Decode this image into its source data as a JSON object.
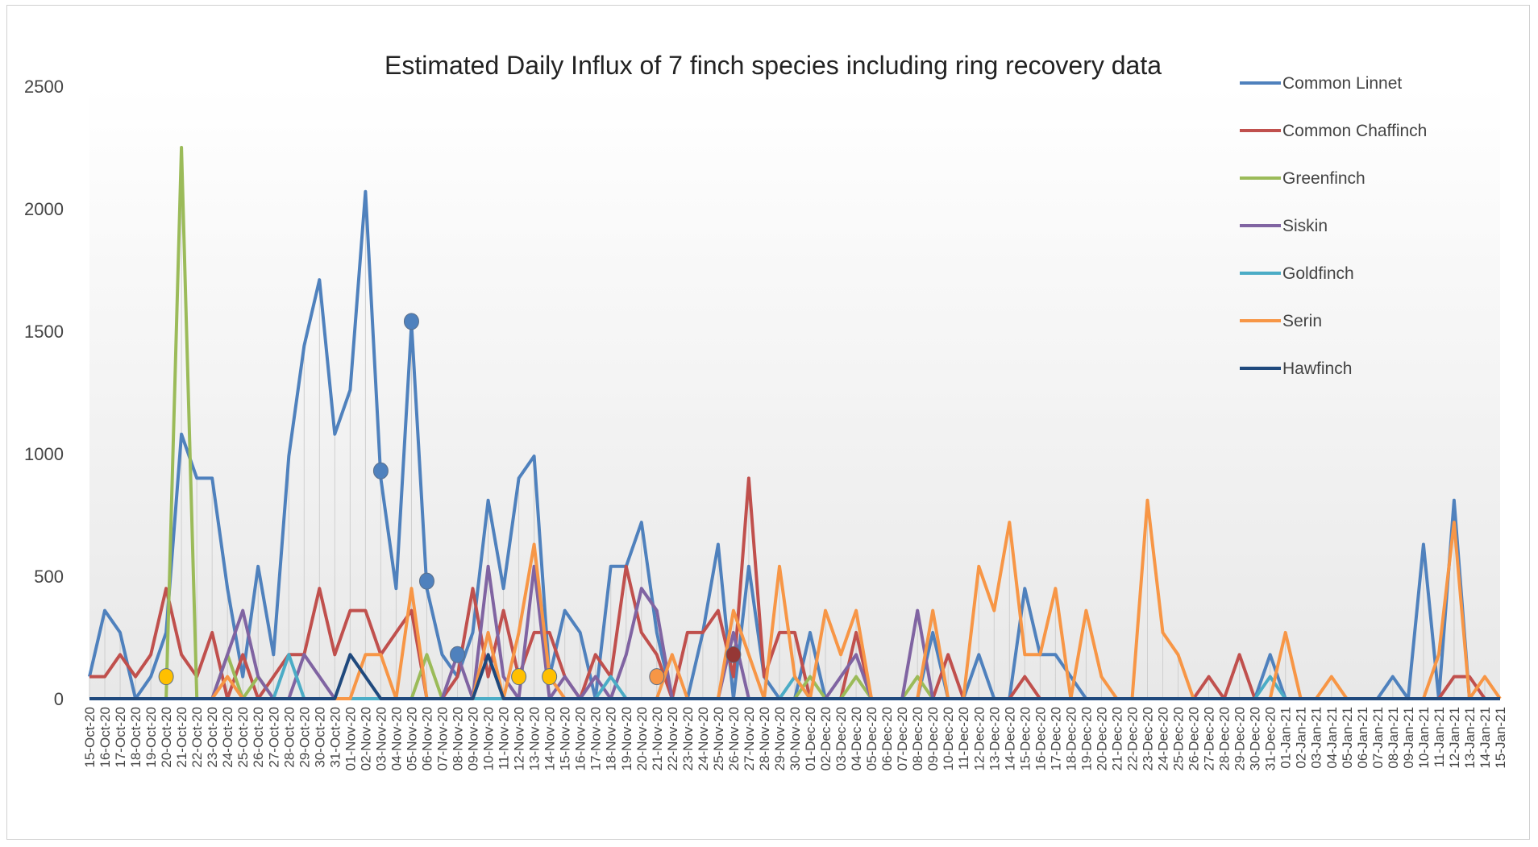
{
  "chart_data": {
    "type": "line",
    "title": "Estimated Daily Influx of 7 finch species including ring recovery data",
    "xlabel": "",
    "ylabel": "",
    "ylim": [
      0,
      2500
    ],
    "yticks": [
      0,
      500,
      1000,
      1500,
      2000,
      2500
    ],
    "grid": "vertical drop lines",
    "legend_position": "right",
    "categories": [
      "15-Oct-20",
      "16-Oct-20",
      "17-Oct-20",
      "18-Oct-20",
      "19-Oct-20",
      "20-Oct-20",
      "21-Oct-20",
      "22-Oct-20",
      "23-Oct-20",
      "24-Oct-20",
      "25-Oct-20",
      "26-Oct-20",
      "27-Oct-20",
      "28-Oct-20",
      "29-Oct-20",
      "30-Oct-20",
      "31-Oct-20",
      "01-Nov-20",
      "02-Nov-20",
      "03-Nov-20",
      "04-Nov-20",
      "05-Nov-20",
      "06-Nov-20",
      "07-Nov-20",
      "08-Nov-20",
      "09-Nov-20",
      "10-Nov-20",
      "11-Nov-20",
      "12-Nov-20",
      "13-Nov-20",
      "14-Nov-20",
      "15-Nov-20",
      "16-Nov-20",
      "17-Nov-20",
      "18-Nov-20",
      "19-Nov-20",
      "20-Nov-20",
      "21-Nov-20",
      "22-Nov-20",
      "23-Nov-20",
      "24-Nov-20",
      "25-Nov-20",
      "26-Nov-20",
      "27-Nov-20",
      "28-Nov-20",
      "29-Nov-20",
      "30-Nov-20",
      "01-Dec-20",
      "02-Dec-20",
      "03-Dec-20",
      "04-Dec-20",
      "05-Dec-20",
      "06-Dec-20",
      "07-Dec-20",
      "08-Dec-20",
      "09-Dec-20",
      "10-Dec-20",
      "11-Dec-20",
      "12-Dec-20",
      "13-Dec-20",
      "14-Dec-20",
      "15-Dec-20",
      "16-Dec-20",
      "17-Dec-20",
      "18-Dec-20",
      "19-Dec-20",
      "20-Dec-20",
      "21-Dec-20",
      "22-Dec-20",
      "23-Dec-20",
      "24-Dec-20",
      "25-Dec-20",
      "26-Dec-20",
      "27-Dec-20",
      "28-Dec-20",
      "29-Dec-20",
      "30-Dec-20",
      "31-Dec-20",
      "01-Jan-21",
      "02-Jan-21",
      "03-Jan-21",
      "04-Jan-21",
      "05-Jan-21",
      "06-Jan-21",
      "07-Jan-21",
      "08-Jan-21",
      "09-Jan-21",
      "10-Jan-21",
      "11-Jan-21",
      "12-Jan-21",
      "13-Jan-21",
      "14-Jan-21",
      "15-Jan-21"
    ],
    "series": [
      {
        "name": "Common Linnet",
        "color": "#4f81bd",
        "values": [
          90,
          360,
          270,
          0,
          90,
          270,
          1080,
          900,
          900,
          450,
          90,
          540,
          180,
          990,
          1440,
          1710,
          1080,
          1260,
          2070,
          900,
          450,
          1530,
          450,
          180,
          90,
          270,
          810,
          450,
          900,
          990,
          90,
          360,
          270,
          0,
          540,
          540,
          720,
          270,
          0,
          0,
          270,
          630,
          0,
          540,
          90,
          0,
          0,
          270,
          0,
          0,
          0,
          0,
          0,
          0,
          0,
          270,
          0,
          0,
          180,
          0,
          0,
          450,
          180,
          180,
          90,
          0,
          0,
          0,
          0,
          0,
          0,
          0,
          0,
          0,
          0,
          0,
          0,
          180,
          0,
          0,
          0,
          0,
          0,
          0,
          0,
          90,
          0,
          630,
          0,
          810,
          0,
          0,
          0
        ]
      },
      {
        "name": "Common Chaffinch",
        "color": "#c0504d",
        "values": [
          90,
          90,
          180,
          90,
          180,
          450,
          180,
          90,
          270,
          0,
          180,
          0,
          90,
          180,
          180,
          450,
          180,
          360,
          360,
          180,
          270,
          360,
          0,
          0,
          90,
          450,
          90,
          360,
          90,
          270,
          270,
          90,
          0,
          180,
          90,
          540,
          270,
          180,
          0,
          270,
          270,
          360,
          90,
          900,
          90,
          270,
          270,
          0,
          0,
          0,
          270,
          0,
          0,
          0,
          0,
          0,
          180,
          0,
          0,
          0,
          0,
          90,
          0,
          0,
          0,
          0,
          0,
          0,
          0,
          0,
          0,
          0,
          0,
          90,
          0,
          180,
          0,
          0,
          0,
          0,
          0,
          0,
          0,
          0,
          0,
          0,
          0,
          0,
          0,
          90,
          90,
          0,
          0
        ]
      },
      {
        "name": "Greenfinch",
        "color": "#9bbb59",
        "values": [
          0,
          0,
          0,
          0,
          0,
          0,
          2250,
          0,
          0,
          180,
          0,
          90,
          0,
          0,
          0,
          0,
          0,
          0,
          0,
          0,
          0,
          0,
          180,
          0,
          0,
          0,
          0,
          0,
          0,
          0,
          0,
          0,
          0,
          0,
          0,
          0,
          0,
          0,
          0,
          0,
          0,
          0,
          0,
          0,
          0,
          0,
          0,
          90,
          0,
          0,
          90,
          0,
          0,
          0,
          90,
          0,
          0,
          0,
          0,
          0,
          0,
          0,
          0,
          0,
          0,
          0,
          0,
          0,
          0,
          0,
          0,
          0,
          0,
          0,
          0,
          0,
          0,
          0,
          0,
          0,
          0,
          0,
          0,
          0,
          0,
          0,
          0,
          0,
          0,
          0,
          0,
          0,
          0
        ]
      },
      {
        "name": "Siskin",
        "color": "#8064a2",
        "values": [
          0,
          0,
          0,
          0,
          0,
          0,
          0,
          0,
          0,
          180,
          360,
          90,
          0,
          0,
          180,
          90,
          0,
          0,
          0,
          0,
          0,
          0,
          0,
          0,
          180,
          0,
          540,
          90,
          0,
          540,
          0,
          90,
          0,
          90,
          0,
          180,
          450,
          360,
          0,
          0,
          0,
          0,
          270,
          0,
          0,
          0,
          0,
          0,
          0,
          90,
          180,
          0,
          0,
          0,
          360,
          0,
          0,
          0,
          0,
          0,
          0,
          0,
          0,
          0,
          0,
          0,
          0,
          0,
          0,
          0,
          0,
          0,
          0,
          0,
          0,
          0,
          0,
          0,
          0,
          0,
          0,
          0,
          0,
          0,
          0,
          0,
          0,
          0,
          0,
          0,
          0,
          0,
          0
        ]
      },
      {
        "name": "Goldfinch",
        "color": "#4bacc6",
        "values": [
          0,
          0,
          0,
          0,
          0,
          0,
          0,
          0,
          0,
          0,
          0,
          0,
          0,
          180,
          0,
          0,
          0,
          0,
          0,
          0,
          0,
          0,
          0,
          0,
          0,
          0,
          0,
          0,
          0,
          0,
          0,
          0,
          0,
          0,
          90,
          0,
          0,
          0,
          0,
          0,
          0,
          0,
          0,
          0,
          0,
          0,
          90,
          0,
          0,
          0,
          0,
          0,
          0,
          0,
          0,
          0,
          0,
          0,
          0,
          0,
          0,
          0,
          0,
          0,
          0,
          0,
          0,
          0,
          0,
          0,
          0,
          0,
          0,
          0,
          0,
          0,
          0,
          90,
          0,
          0,
          0,
          0,
          0,
          0,
          0,
          0,
          0,
          0,
          0,
          0,
          0,
          0,
          0
        ]
      },
      {
        "name": "Serin",
        "color": "#f79646",
        "values": [
          0,
          0,
          0,
          0,
          0,
          0,
          0,
          0,
          0,
          90,
          0,
          0,
          0,
          0,
          0,
          0,
          0,
          0,
          180,
          180,
          0,
          450,
          0,
          0,
          0,
          0,
          270,
          0,
          270,
          630,
          90,
          0,
          0,
          0,
          0,
          0,
          0,
          0,
          180,
          0,
          0,
          0,
          360,
          180,
          0,
          540,
          90,
          0,
          360,
          180,
          360,
          0,
          0,
          0,
          0,
          360,
          0,
          0,
          540,
          360,
          720,
          180,
          180,
          450,
          0,
          360,
          90,
          0,
          0,
          810,
          270,
          180,
          0,
          0,
          0,
          0,
          0,
          0,
          270,
          0,
          0,
          90,
          0,
          0,
          0,
          0,
          0,
          0,
          180,
          720,
          0,
          90,
          0
        ]
      },
      {
        "name": "Hawfinch",
        "color": "#1f497d",
        "values": [
          0,
          0,
          0,
          0,
          0,
          0,
          0,
          0,
          0,
          0,
          0,
          0,
          0,
          0,
          0,
          0,
          0,
          180,
          90,
          0,
          0,
          0,
          0,
          0,
          0,
          0,
          180,
          0,
          0,
          0,
          0,
          0,
          0,
          0,
          0,
          0,
          0,
          0,
          0,
          0,
          0,
          0,
          0,
          0,
          0,
          0,
          0,
          0,
          0,
          0,
          0,
          0,
          0,
          0,
          0,
          0,
          0,
          0,
          0,
          0,
          0,
          0,
          0,
          0,
          0,
          0,
          0,
          0,
          0,
          0,
          0,
          0,
          0,
          0,
          0,
          0,
          0,
          0,
          0,
          0,
          0,
          0,
          0,
          0,
          0,
          0,
          0,
          0,
          0,
          0,
          0,
          0,
          0
        ]
      }
    ],
    "ring_recoveries": [
      {
        "x": "20-Oct-20",
        "y": 90,
        "color": "#ffc000"
      },
      {
        "x": "03-Nov-20",
        "y": 930,
        "color": "#4f81bd"
      },
      {
        "x": "05-Nov-20",
        "y": 1540,
        "color": "#4f81bd"
      },
      {
        "x": "06-Nov-20",
        "y": 480,
        "color": "#4f81bd"
      },
      {
        "x": "08-Nov-20",
        "y": 180,
        "color": "#4f81bd"
      },
      {
        "x": "12-Nov-20",
        "y": 90,
        "color": "#ffc000"
      },
      {
        "x": "14-Nov-20",
        "y": 90,
        "color": "#ffc000"
      },
      {
        "x": "21-Nov-20",
        "y": 90,
        "color": "#f79646"
      },
      {
        "x": "26-Nov-20",
        "y": 180,
        "color": "#953735"
      }
    ]
  }
}
